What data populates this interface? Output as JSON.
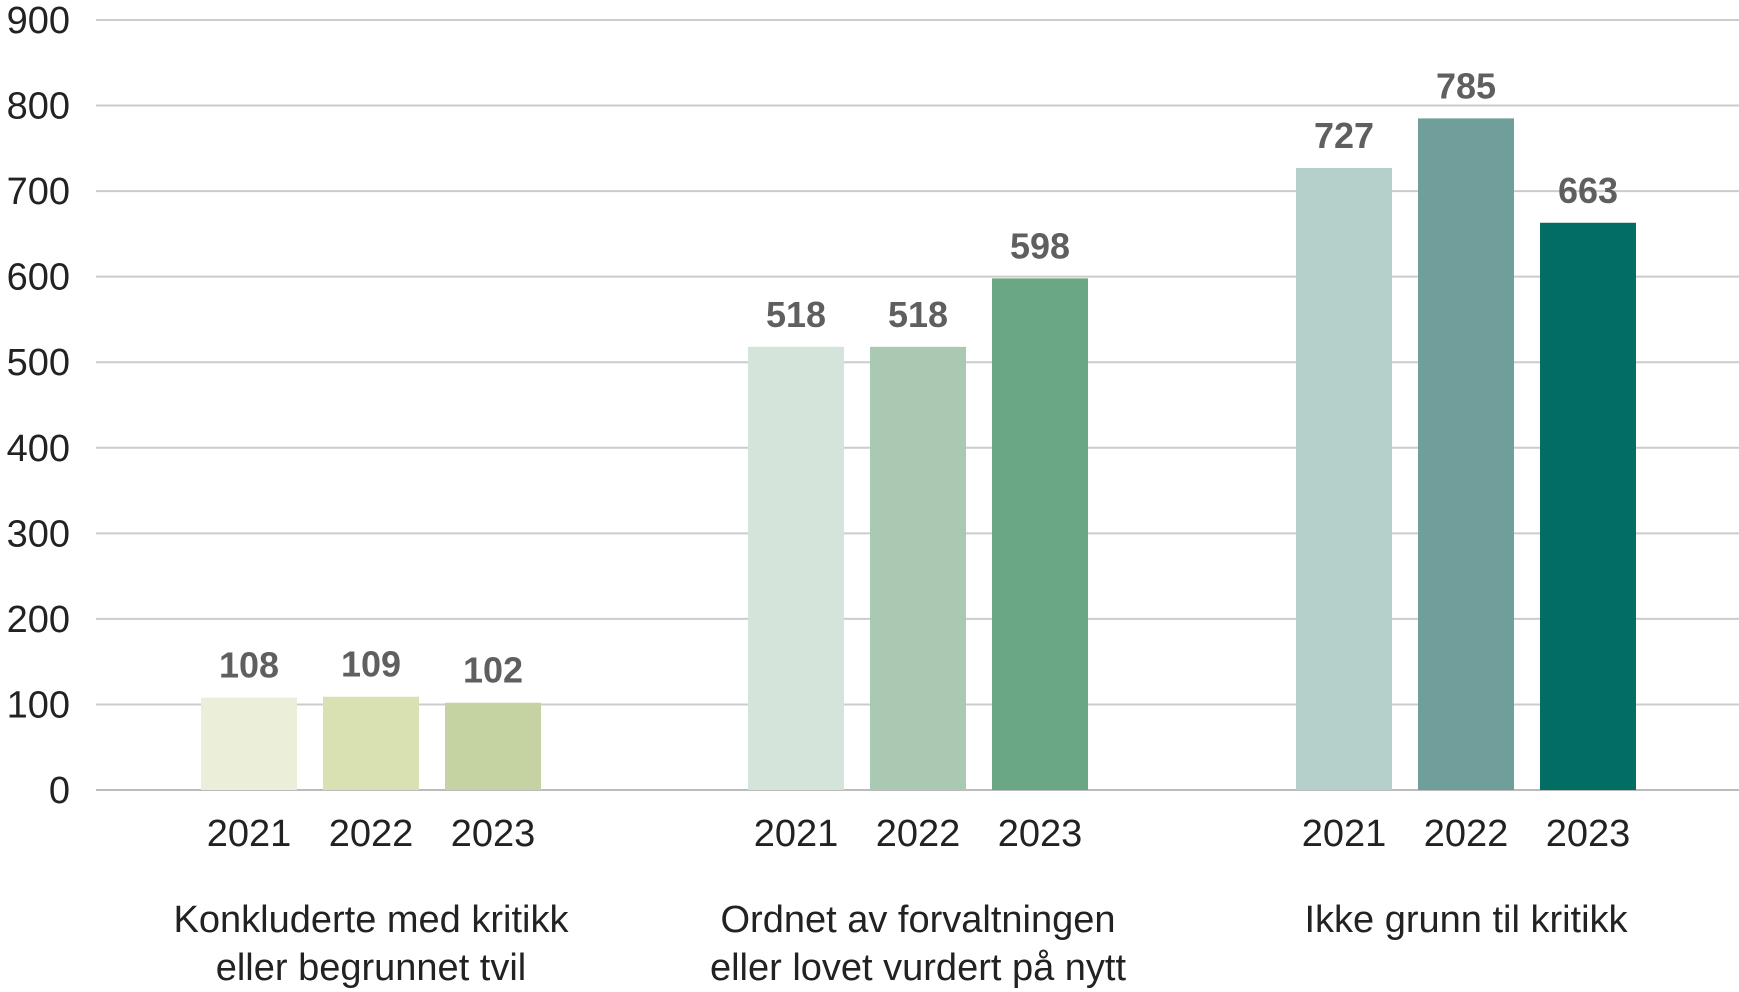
{
  "chart_data": {
    "type": "bar",
    "title": "",
    "xlabel": "",
    "ylabel": "",
    "ylim": [
      0,
      900
    ],
    "yticks": [
      0,
      100,
      200,
      300,
      400,
      500,
      600,
      700,
      800,
      900
    ],
    "grid": true,
    "legend": "none",
    "groups": [
      {
        "label_lines": [
          "Konkluderte med kritikk",
          "eller begrunnet tvil"
        ],
        "bars": [
          {
            "year": "2021",
            "value": 108,
            "color": "#ebeed8"
          },
          {
            "year": "2022",
            "value": 109,
            "color": "#d9e1b2"
          },
          {
            "year": "2023",
            "value": 102,
            "color": "#c5d3a2"
          }
        ]
      },
      {
        "label_lines": [
          "Ordnet av forvaltningen",
          "eller lovet vurdert på nytt"
        ],
        "bars": [
          {
            "year": "2021",
            "value": 518,
            "color": "#d4e4da"
          },
          {
            "year": "2022",
            "value": 518,
            "color": "#a9c9b3"
          },
          {
            "year": "2023",
            "value": 598,
            "color": "#6aa784"
          }
        ]
      },
      {
        "label_lines": [
          "Ikke grunn til kritikk"
        ],
        "bars": [
          {
            "year": "2021",
            "value": 727,
            "color": "#b5cfcb"
          },
          {
            "year": "2022",
            "value": 785,
            "color": "#709e9a"
          },
          {
            "year": "2023",
            "value": 663,
            "color": "#026d62"
          }
        ]
      }
    ],
    "colors": {
      "gridline": "#cccccc",
      "value_label": "#5f5f5f",
      "text": "#222222"
    }
  }
}
